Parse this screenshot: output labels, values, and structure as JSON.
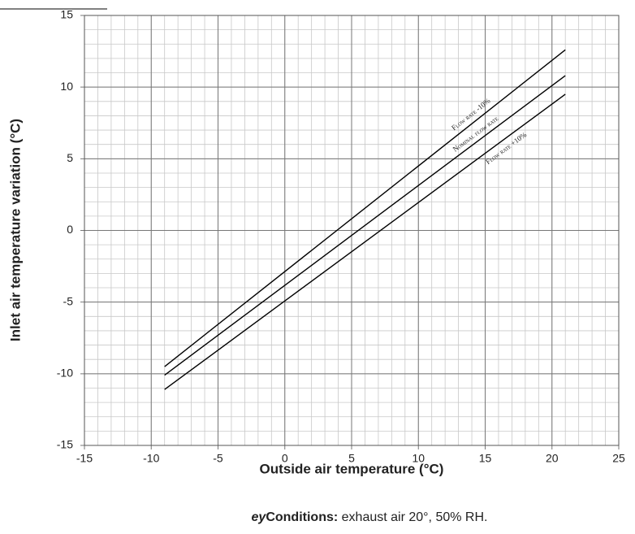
{
  "chart_data": {
    "type": "line",
    "x_label": "Outside air temperature (°C)",
    "y_label": "Inlet air temperature variation (°C)",
    "xlim": [
      -15,
      25
    ],
    "xticks": [
      -15,
      -10,
      -5,
      0,
      5,
      10,
      15,
      20,
      25
    ],
    "ylim": [
      -15,
      15
    ],
    "yticks": [
      -15,
      -10,
      -5,
      0,
      5,
      10,
      15
    ],
    "grid": true,
    "minor_grid_step": 1,
    "series": [
      {
        "name": "Flow rate -10%",
        "color": "#000000",
        "x": [
          -9,
          21
        ],
        "values": [
          -9.5,
          12.6
        ]
      },
      {
        "name": "Nominal flow rate",
        "color": "#000000",
        "x": [
          -9,
          21
        ],
        "values": [
          -10.1,
          10.8
        ]
      },
      {
        "name": "Flow rate +10%",
        "color": "#000000",
        "x": [
          -9,
          21
        ],
        "values": [
          -11.1,
          9.5
        ]
      }
    ],
    "note": {
      "prefix": "ey",
      "label": "Conditions:",
      "text": " exhaust air 20°, 50% RH."
    }
  }
}
